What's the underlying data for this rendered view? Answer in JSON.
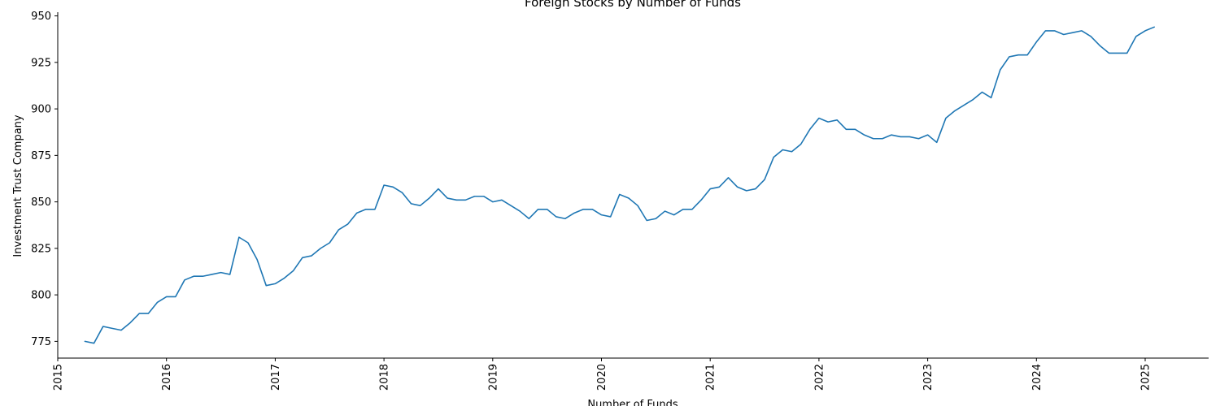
{
  "chart_data": {
    "type": "line",
    "title": "Foreign Stocks by Number of Funds",
    "xlabel": "Number of Funds",
    "ylabel": "Investment Trust Company",
    "x_ticks": [
      "2015",
      "2016",
      "2017",
      "2018",
      "2019",
      "2020",
      "2021",
      "2022",
      "2023",
      "2024",
      "2025"
    ],
    "y_ticks": [
      775,
      800,
      825,
      850,
      875,
      900,
      925,
      950
    ],
    "xlim": [
      "2015-01-01",
      "2025-08-01"
    ],
    "ylim": [
      766,
      952
    ],
    "grid": false,
    "color": "#1f77b4",
    "series": [
      {
        "x": [
          "2015-04",
          "2015-05",
          "2015-06",
          "2015-07",
          "2015-08",
          "2015-09",
          "2015-10",
          "2015-11",
          "2015-12",
          "2016-01",
          "2016-02",
          "2016-03",
          "2016-04",
          "2016-05",
          "2016-06",
          "2016-07",
          "2016-08",
          "2016-09",
          "2016-10",
          "2016-11",
          "2016-12",
          "2017-01",
          "2017-02",
          "2017-03",
          "2017-04",
          "2017-05",
          "2017-06",
          "2017-07",
          "2017-08",
          "2017-09",
          "2017-10",
          "2017-11",
          "2017-12",
          "2018-01",
          "2018-02",
          "2018-03",
          "2018-04",
          "2018-05",
          "2018-06",
          "2018-07",
          "2018-08",
          "2018-09",
          "2018-10",
          "2018-11",
          "2018-12",
          "2019-01",
          "2019-02",
          "2019-03",
          "2019-04",
          "2019-05",
          "2019-06",
          "2019-07",
          "2019-08",
          "2019-09",
          "2019-10",
          "2019-11",
          "2019-12",
          "2020-01",
          "2020-02",
          "2020-03",
          "2020-04",
          "2020-05",
          "2020-06",
          "2020-07",
          "2020-08",
          "2020-09",
          "2020-10",
          "2020-11",
          "2020-12",
          "2021-01",
          "2021-02",
          "2021-03",
          "2021-04",
          "2021-05",
          "2021-06",
          "2021-07",
          "2021-08",
          "2021-09",
          "2021-10",
          "2021-11",
          "2021-12",
          "2022-01",
          "2022-02",
          "2022-03",
          "2022-04",
          "2022-05",
          "2022-06",
          "2022-07",
          "2022-08",
          "2022-09",
          "2022-10",
          "2022-11",
          "2022-12",
          "2023-01",
          "2023-02",
          "2023-03",
          "2023-04",
          "2023-05",
          "2023-06",
          "2023-07",
          "2023-08",
          "2023-09",
          "2023-10",
          "2023-11",
          "2023-12",
          "2024-01",
          "2024-02",
          "2024-03",
          "2024-04",
          "2024-05",
          "2024-06",
          "2024-07",
          "2024-08",
          "2024-09",
          "2024-10",
          "2024-11",
          "2024-12",
          "2025-01",
          "2025-02"
        ],
        "y": [
          775,
          774,
          783,
          782,
          781,
          785,
          790,
          790,
          796,
          799,
          799,
          808,
          810,
          810,
          811,
          812,
          811,
          831,
          828,
          819,
          805,
          806,
          809,
          813,
          820,
          821,
          825,
          828,
          835,
          838,
          844,
          846,
          846,
          859,
          858,
          855,
          849,
          848,
          852,
          857,
          852,
          851,
          851,
          853,
          853,
          850,
          851,
          848,
          845,
          841,
          846,
          846,
          842,
          841,
          844,
          846,
          846,
          843,
          842,
          854,
          852,
          848,
          840,
          841,
          845,
          843,
          846,
          846,
          851,
          857,
          858,
          863,
          858,
          856,
          857,
          862,
          874,
          878,
          877,
          881,
          889,
          895,
          893,
          894,
          889,
          889,
          886,
          884,
          884,
          886,
          885,
          885,
          884,
          886,
          882,
          895,
          899,
          902,
          905,
          909,
          906,
          921,
          928,
          929,
          929,
          936,
          942,
          942,
          940,
          941,
          942,
          939,
          934,
          930,
          930,
          930,
          939,
          942,
          944
        ]
      }
    ]
  }
}
